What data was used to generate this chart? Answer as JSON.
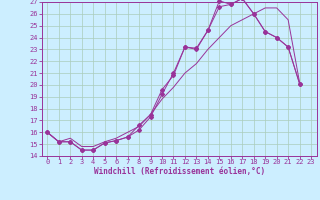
{
  "xlabel": "Windchill (Refroidissement éolien,°C)",
  "bg_color": "#cceeff",
  "grid_color": "#aaccbb",
  "line_color": "#993399",
  "xlim": [
    -0.5,
    23.5
  ],
  "ylim": [
    14,
    27
  ],
  "xticks": [
    0,
    1,
    2,
    3,
    4,
    5,
    6,
    7,
    8,
    9,
    10,
    11,
    12,
    13,
    14,
    15,
    16,
    17,
    18,
    19,
    20,
    21,
    22,
    23
  ],
  "yticks": [
    14,
    15,
    16,
    17,
    18,
    19,
    20,
    21,
    22,
    23,
    24,
    25,
    26,
    27
  ],
  "curve1_x": [
    0,
    1,
    2,
    3,
    4,
    5,
    6,
    7,
    8,
    9,
    10,
    11,
    12,
    13,
    14,
    15,
    16,
    17,
    18,
    19,
    20,
    21,
    22
  ],
  "curve1_y": [
    16.0,
    15.2,
    15.2,
    14.5,
    14.5,
    15.1,
    15.3,
    15.6,
    16.2,
    17.3,
    19.2,
    21.0,
    23.2,
    23.1,
    24.6,
    27.1,
    26.8,
    27.3,
    26.0,
    24.5,
    24.0,
    23.2,
    20.1
  ],
  "curve2_x": [
    0,
    1,
    2,
    3,
    4,
    5,
    6,
    7,
    8,
    9,
    10,
    11,
    12,
    13,
    14,
    15,
    16,
    17,
    18,
    19,
    20,
    21,
    22
  ],
  "curve2_y": [
    16.0,
    15.2,
    15.2,
    14.5,
    14.5,
    15.1,
    15.3,
    15.6,
    16.6,
    17.5,
    19.6,
    20.8,
    23.2,
    23.0,
    24.6,
    26.6,
    26.8,
    27.3,
    26.0,
    24.5,
    24.0,
    23.2,
    20.1
  ],
  "curve3_x": [
    0,
    1,
    2,
    3,
    4,
    5,
    6,
    7,
    8,
    9,
    10,
    11,
    12,
    13,
    14,
    15,
    16,
    17,
    18,
    19,
    20,
    21,
    22
  ],
  "curve3_y": [
    16.0,
    15.2,
    15.5,
    14.8,
    14.8,
    15.2,
    15.5,
    16.0,
    16.5,
    17.5,
    18.8,
    19.8,
    21.0,
    21.8,
    23.0,
    24.0,
    25.0,
    25.5,
    26.0,
    26.5,
    26.5,
    25.5,
    20.2
  ]
}
